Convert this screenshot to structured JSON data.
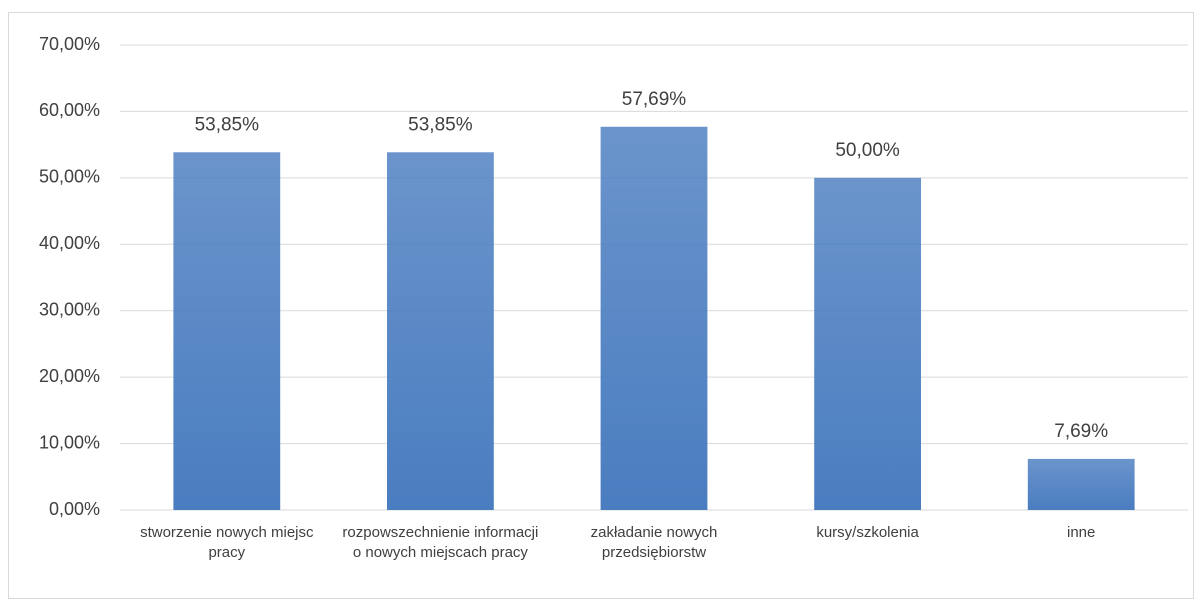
{
  "chart_data": {
    "type": "bar",
    "categories": [
      "stworzenie nowych miejsc pracy",
      "rozpowszechnienie informacji o nowych miejscach pracy",
      "zakładanie nowych przedsiębiorstw",
      "kursy/szkolenia",
      "inne"
    ],
    "values": [
      53.85,
      53.85,
      57.69,
      50.0,
      7.69
    ],
    "value_labels": [
      "53,85%",
      "53,85%",
      "57,69%",
      "50,00%",
      "7,69%"
    ],
    "color": "#4a7dc0",
    "ylim": [
      0,
      70
    ],
    "yticks": [
      {
        "value": 0,
        "label": "0,00%"
      },
      {
        "value": 10,
        "label": "10,00%"
      },
      {
        "value": 20,
        "label": "20,00%"
      },
      {
        "value": 30,
        "label": "30,00%"
      },
      {
        "value": 40,
        "label": "40,00%"
      },
      {
        "value": 50,
        "label": "50,00%"
      },
      {
        "value": 60,
        "label": "60,00%"
      },
      {
        "value": 70,
        "label": "70,00%"
      }
    ],
    "grid": true
  }
}
